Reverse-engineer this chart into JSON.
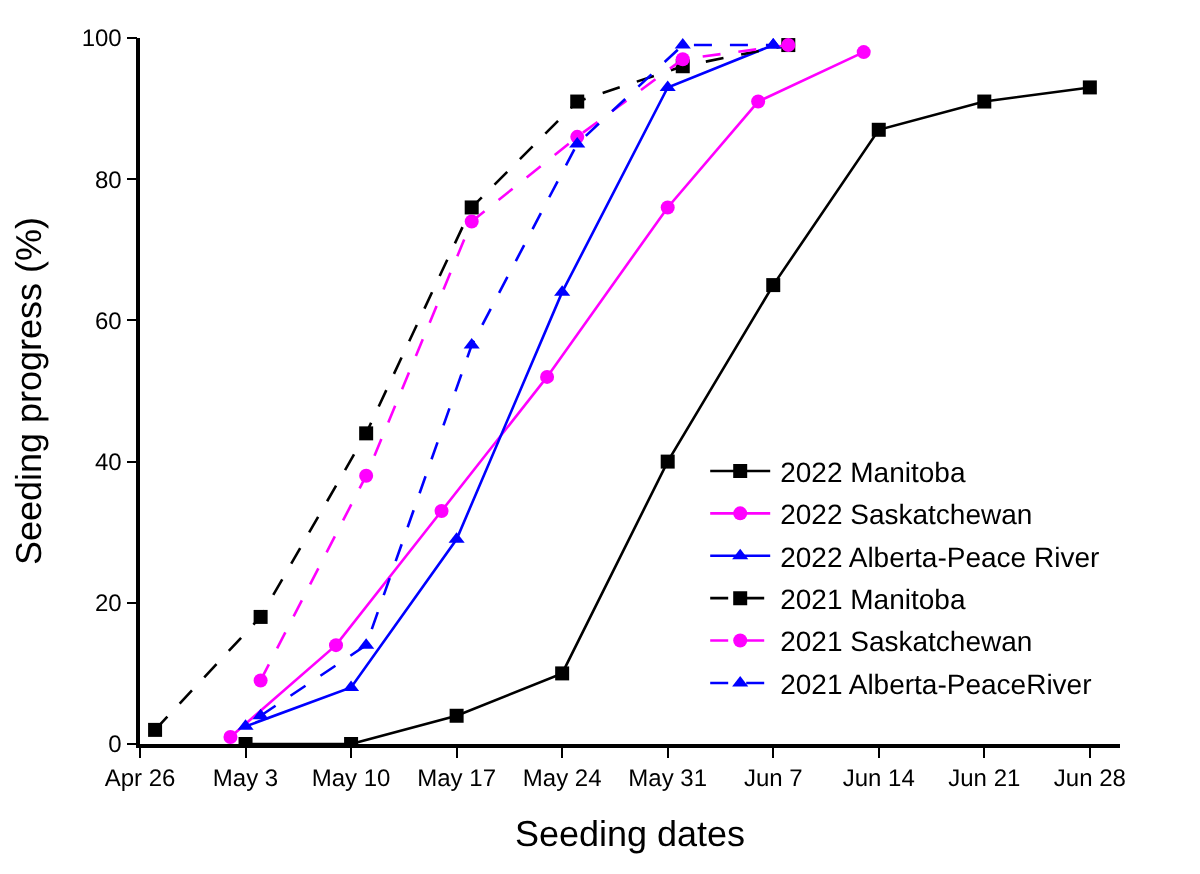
{
  "chart_data": {
    "type": "line",
    "xlabel": "Seeding dates",
    "ylabel": "Seeding progress (%)",
    "xlim": [
      "--04-26",
      "--06-30"
    ],
    "xticks": [
      {
        "value": "--04-26",
        "label": "Apr 26"
      },
      {
        "value": "--05-03",
        "label": "May 3"
      },
      {
        "value": "--05-10",
        "label": "May 10"
      },
      {
        "value": "--05-17",
        "label": "May 17"
      },
      {
        "value": "--05-24",
        "label": "May 24"
      },
      {
        "value": "--05-31",
        "label": "May 31"
      },
      {
        "value": "--06-07",
        "label": "Jun 7"
      },
      {
        "value": "--06-14",
        "label": "Jun 14"
      },
      {
        "value": "--06-21",
        "label": "Jun 21"
      },
      {
        "value": "--06-28",
        "label": "Jun 28"
      }
    ],
    "ylim": [
      0,
      100
    ],
    "yticks": [
      0,
      20,
      40,
      60,
      80,
      100
    ],
    "legend": "bottom right",
    "series": [
      {
        "name": "2022 Manitoba",
        "color": "#000000",
        "marker": "square",
        "line_style": "solid",
        "x": [
          "--05-03",
          "--05-10",
          "--05-17",
          "--05-24",
          "--05-31",
          "--06-07",
          "--06-14",
          "--06-21",
          "--06-28"
        ],
        "values": [
          0,
          0,
          4,
          10,
          40,
          65,
          87,
          91,
          93
        ]
      },
      {
        "name": "2022 Saskatchewan",
        "color": "#ff00ff",
        "marker": "circle",
        "line_style": "solid",
        "x": [
          "--05-02",
          "--05-09",
          "--05-16",
          "--05-23",
          "--05-31",
          "--06-06",
          "--06-13"
        ],
        "values": [
          1,
          14,
          33,
          52,
          76,
          91,
          98
        ]
      },
      {
        "name": "2022 Alberta-Peace River",
        "color": "#0000ff",
        "marker": "triangle",
        "line_style": "solid",
        "x": [
          "--05-03",
          "--05-10",
          "--05-17",
          "--05-24",
          "--05-31",
          "--06-07"
        ],
        "values": [
          2.5,
          8,
          29,
          64,
          93,
          99
        ]
      },
      {
        "name": "2021 Manitoba",
        "color": "#000000",
        "marker": "square",
        "line_style": "dashed",
        "x": [
          "--04-27",
          "--05-04",
          "--05-11",
          "--05-18",
          "--05-25",
          "--06-01",
          "--06-08"
        ],
        "values": [
          2,
          18,
          44,
          76,
          91,
          96,
          99
        ]
      },
      {
        "name": "2021 Saskatchewan",
        "color": "#ff00ff",
        "marker": "circle",
        "line_style": "dashed",
        "x": [
          "--05-04",
          "--05-11",
          "--05-18",
          "--05-25",
          "--06-01",
          "--06-08"
        ],
        "values": [
          9,
          38,
          74,
          86,
          97,
          99
        ]
      },
      {
        "name": "2021 Alberta-PeaceRiver",
        "color": "#0000ff",
        "marker": "triangle",
        "line_style": "dashed",
        "x": [
          "--05-04",
          "--05-11",
          "--05-18",
          "--05-25",
          "--06-01",
          "--06-07"
        ],
        "values": [
          4,
          14,
          56.5,
          85,
          99,
          99
        ]
      }
    ]
  }
}
